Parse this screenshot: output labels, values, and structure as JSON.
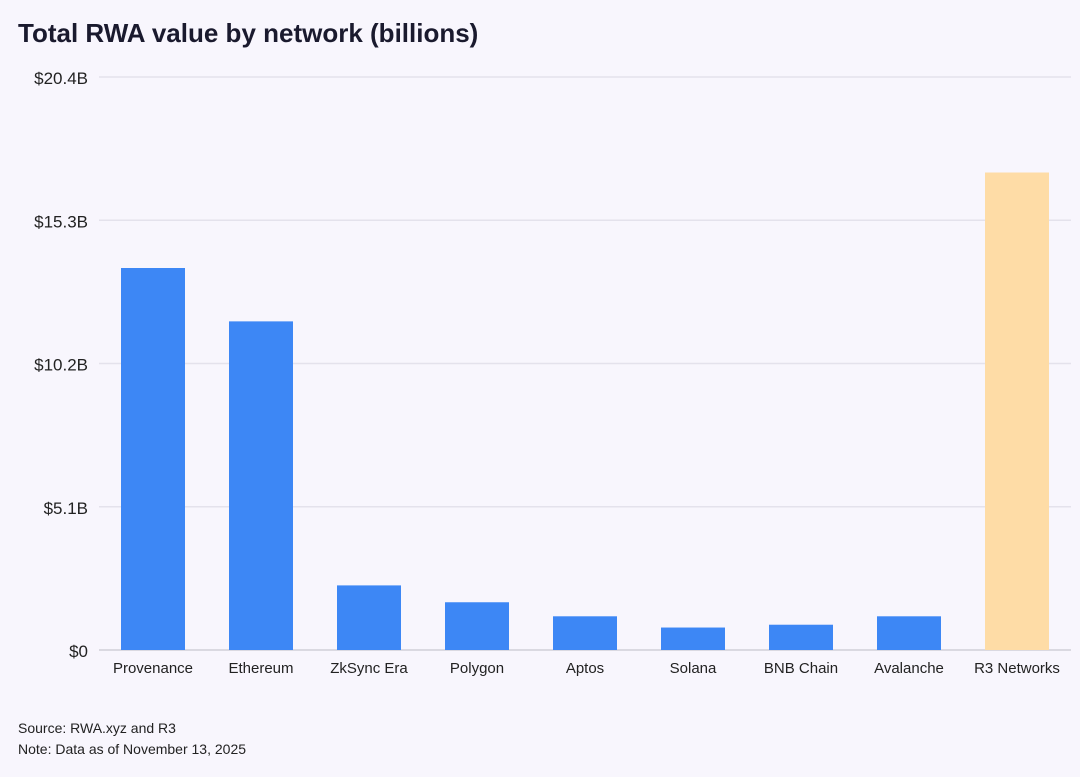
{
  "chart_data": {
    "type": "bar",
    "title": "Total RWA value by network (billions)",
    "categories": [
      "Provenance",
      "Ethereum",
      "ZkSync Era",
      "Polygon",
      "Aptos",
      "Solana",
      "BNB Chain",
      "Avalanche",
      "R3 Networks"
    ],
    "values": [
      13.6,
      11.7,
      2.3,
      1.7,
      1.2,
      0.8,
      0.9,
      1.2,
      17.0
    ],
    "colors": [
      "#3d87f5",
      "#3d87f5",
      "#3d87f5",
      "#3d87f5",
      "#3d87f5",
      "#3d87f5",
      "#3d87f5",
      "#3d87f5",
      "#fedca6"
    ],
    "yticks": [
      0,
      5.1,
      10.2,
      15.3,
      20.4
    ],
    "ytick_labels": [
      "$0",
      "$5.1B",
      "$10.2B",
      "$15.3B",
      "$20.4B"
    ],
    "ylim": [
      0,
      20.4
    ],
    "xlabel": "",
    "ylabel": "",
    "grid": true
  },
  "footer": {
    "source": "Source: RWA.xyz and R3",
    "note": "Note: Data as of November 13, 2025"
  }
}
